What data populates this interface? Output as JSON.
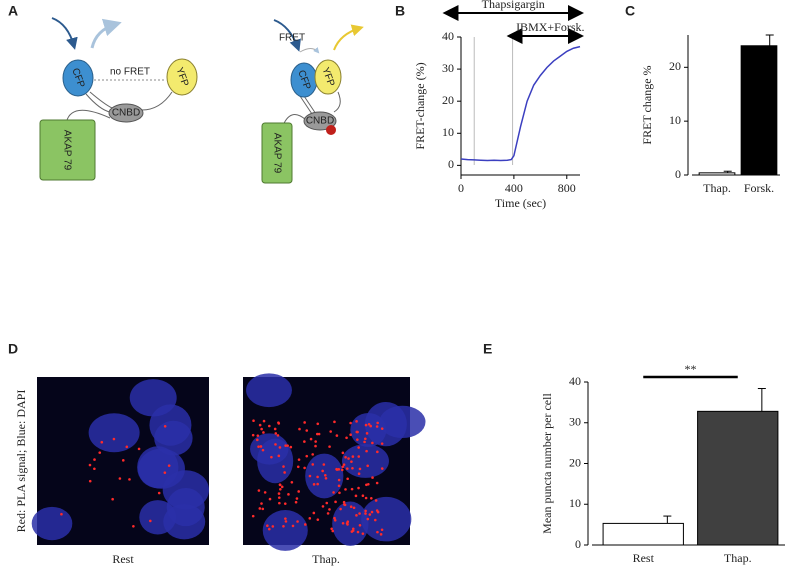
{
  "panel_labels": [
    "A",
    "B",
    "C",
    "D",
    "E"
  ],
  "diagram": {
    "left": {
      "cfp": "CFP",
      "yfp": "YFP",
      "cnbd": "CNBD",
      "akap": "AKAP 79",
      "note": "no FRET"
    },
    "right": {
      "cfp": "CFP",
      "yfp": "YFP",
      "cnbd": "CNBD",
      "akap": "AKAP 79",
      "note": "FRET"
    }
  },
  "images": {
    "ylabel": "Red: PLA signal; Blue: DAPI",
    "captions": [
      "Rest",
      "Thap."
    ]
  },
  "chart_data": [
    {
      "type": "line",
      "xlabel": "Time (sec)",
      "ylabel": "FRET-change (%)",
      "xlim": [
        0,
        900
      ],
      "xticks": [
        0,
        400,
        800
      ],
      "ylim": [
        -3,
        40
      ],
      "yticks": [
        0,
        10,
        20,
        30,
        40
      ],
      "x": [
        0,
        50,
        100,
        150,
        200,
        250,
        300,
        350,
        380,
        400,
        450,
        500,
        550,
        600,
        650,
        700,
        750,
        800,
        850,
        900
      ],
      "series": [
        {
          "color": "#3b3fc0",
          "values": [
            2,
            1.8,
            1.7,
            1.6,
            1.5,
            1.6,
            1.5,
            1.6,
            1.8,
            3,
            12,
            20,
            25,
            28,
            30.5,
            32.5,
            34,
            35.5,
            36.5,
            37
          ]
        }
      ],
      "vlines": [
        100,
        390
      ],
      "annotations": [
        {
          "text": "Thapsigargin",
          "start": -110,
          "end": 900
        },
        {
          "text": "IBMX+Forsk.",
          "start": 375,
          "end": 900
        }
      ]
    },
    {
      "type": "bar",
      "ylabel": "FRET change %",
      "categories": [
        "Thap.",
        "Forsk."
      ],
      "values": [
        0.4,
        24
      ],
      "errors": [
        0.3,
        2
      ],
      "colors": [
        "#ffffff",
        "#000000"
      ],
      "ylim": [
        0,
        26
      ],
      "yticks": [
        0,
        10,
        20
      ]
    },
    {
      "type": "bar",
      "ylabel": "Mean puncta number per cell",
      "categories": [
        "Rest",
        "Thap."
      ],
      "values": [
        5.3,
        32.8
      ],
      "errors": [
        1.8,
        5.6
      ],
      "colors": [
        "#ffffff",
        "#404040"
      ],
      "ylim": [
        0,
        40
      ],
      "yticks": [
        0,
        10,
        20,
        30,
        40
      ],
      "significance": "**"
    }
  ]
}
